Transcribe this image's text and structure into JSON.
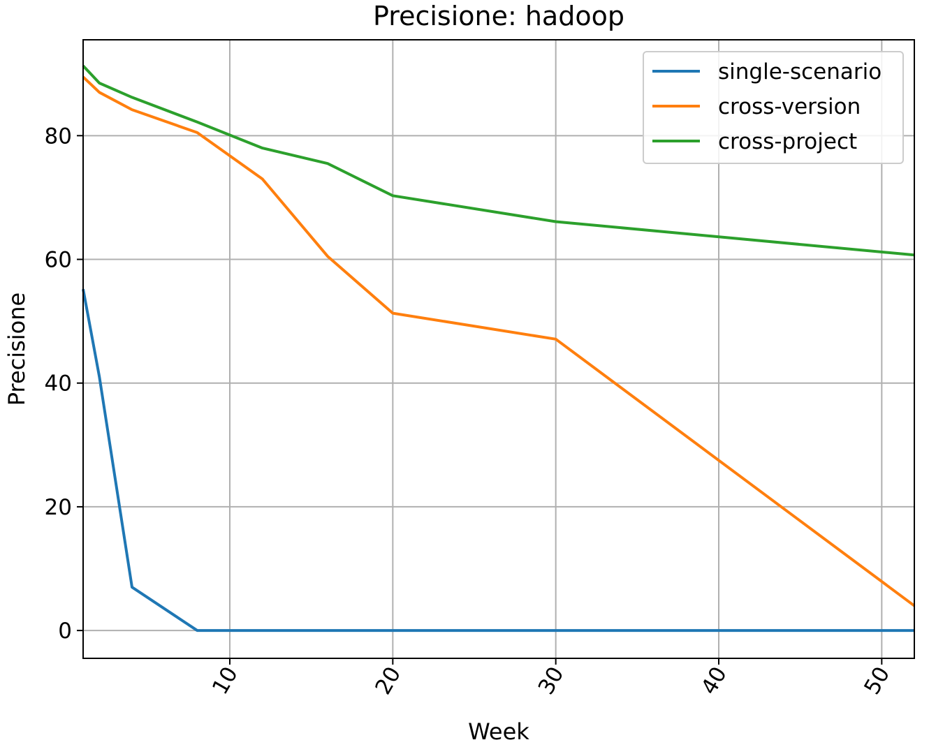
{
  "chart_data": {
    "type": "line",
    "title": "Precisione: hadoop",
    "xlabel": "Week",
    "ylabel": "Precisione",
    "xlim": [
      1,
      52
    ],
    "ylim": [
      -4.5,
      95.5
    ],
    "xticks": [
      10,
      20,
      30,
      40,
      50
    ],
    "yticks": [
      0,
      20,
      40,
      60,
      80
    ],
    "x_tick_rotation_deg": 60,
    "grid": true,
    "legend_position": "top-right",
    "series": [
      {
        "name": "single-scenario",
        "color": "#1f77b4",
        "x": [
          1,
          2,
          4,
          8,
          12,
          16,
          20,
          30,
          52
        ],
        "y": [
          55.2,
          41,
          7,
          0,
          0,
          0,
          0,
          0,
          0
        ]
      },
      {
        "name": "cross-version",
        "color": "#ff7f0e",
        "x": [
          1,
          2,
          4,
          8,
          12,
          16,
          20,
          30,
          52
        ],
        "y": [
          89.5,
          87,
          84.2,
          80.5,
          73,
          60.5,
          51.3,
          47.1,
          4
        ]
      },
      {
        "name": "cross-project",
        "color": "#2ca02c",
        "x": [
          1,
          2,
          4,
          8,
          12,
          16,
          20,
          30,
          52
        ],
        "y": [
          91.3,
          88.5,
          86.2,
          82.2,
          78,
          75.5,
          70.3,
          66.1,
          60.7
        ]
      }
    ]
  }
}
